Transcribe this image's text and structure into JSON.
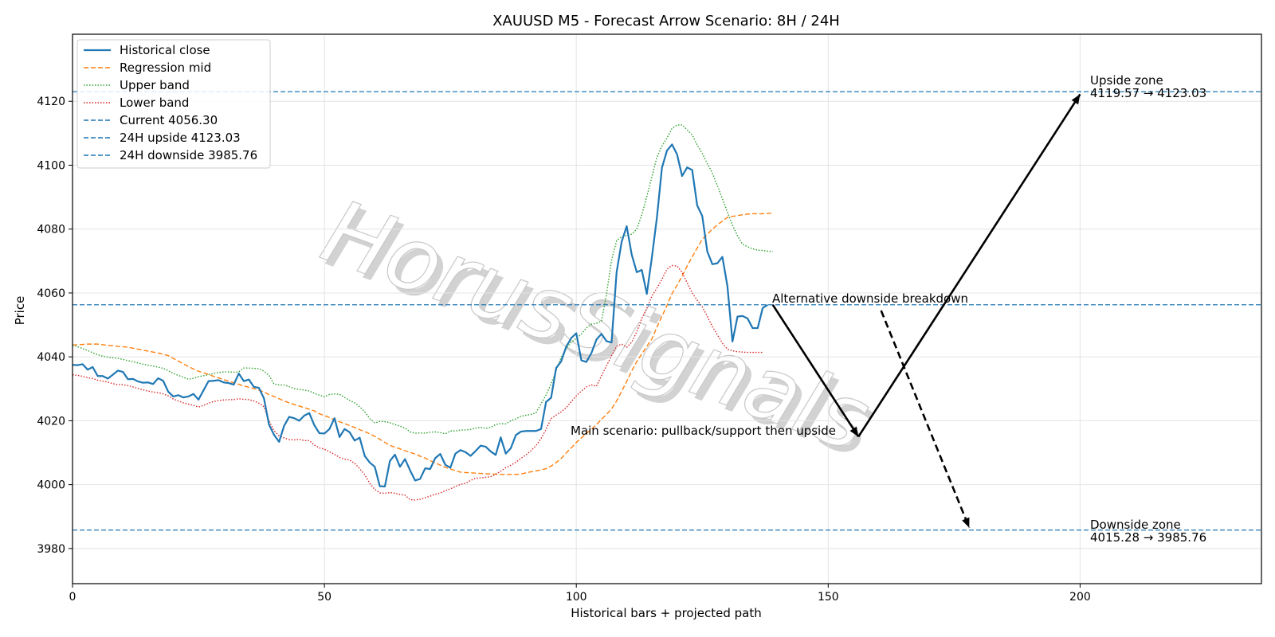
{
  "chart_data": {
    "type": "line",
    "title": "XAUUSD M5 - Forecast Arrow Scenario: 8H / 24H",
    "xlabel": "Historical bars + projected path",
    "ylabel": "Price",
    "xlim": [
      0,
      236
    ],
    "ylim": [
      3969,
      4141
    ],
    "x_ticks": [
      0,
      50,
      100,
      150,
      200
    ],
    "y_ticks": [
      3980,
      4000,
      4020,
      4040,
      4060,
      4080,
      4100,
      4120
    ],
    "grid": true,
    "legend_position": "top-left",
    "watermark": "HorusSignals",
    "colors": {
      "historical": "#1f77b4",
      "regression": "#ff7f0e",
      "upper": "#2ca02c",
      "lower": "#d62728",
      "hline": "#1f77b4",
      "arrow": "#000000"
    },
    "series": [
      {
        "name": "Historical close",
        "key": "historical",
        "style": "solid",
        "x_start": 0,
        "values": [
          4037.5,
          4037.4,
          4037.7,
          4036.0,
          4036.8,
          4034.0,
          4034.0,
          4033.2,
          4034.4,
          4035.7,
          4035.3,
          4033.0,
          4033.1,
          4032.3,
          4031.9,
          4032.0,
          4031.5,
          4033.3,
          4032.5,
          4029.1,
          4027.6,
          4028.0,
          4027.3,
          4027.6,
          4028.4,
          4026.6,
          4029.5,
          4032.4,
          4032.5,
          4032.7,
          4032.0,
          4031.8,
          4031.3,
          4034.8,
          4032.4,
          4032.9,
          4030.6,
          4030.3,
          4027.0,
          4018.8,
          4015.6,
          4013.4,
          4018.4,
          4021.2,
          4020.8,
          4020.0,
          4021.6,
          4022.4,
          4018.6,
          4016.1,
          4016.0,
          4017.4,
          4020.8,
          4014.9,
          4017.4,
          4016.4,
          4013.8,
          4014.7,
          4009.0,
          4006.9,
          4005.6,
          3999.5,
          3999.4,
          4007.4,
          4009.4,
          4005.6,
          4008.0,
          4004.5,
          4001.3,
          4001.8,
          4005.1,
          4004.9,
          4008.3,
          4009.6,
          4006.2,
          4005.3,
          4009.7,
          4010.8,
          4010.2,
          4009.0,
          4010.5,
          4012.2,
          4011.9,
          4010.4,
          4009.3,
          4014.8,
          4009.7,
          4011.4,
          4015.5,
          4016.6,
          4016.8,
          4016.8,
          4016.8,
          4017.4,
          4025.9,
          4027.2,
          4036.5,
          4038.6,
          4043.2,
          4045.9,
          4047.4,
          4038.9,
          4038.4,
          4041.2,
          4045.4,
          4047.2,
          4044.9,
          4044.5,
          4066.5,
          4076.0,
          4080.9,
          4072.0,
          4066.5,
          4067.2,
          4059.7,
          4071.1,
          4083.6,
          4099.2,
          4104.6,
          4106.5,
          4103.4,
          4096.6,
          4099.3,
          4098.5,
          4087.4,
          4084.1,
          4073.0,
          4069.0,
          4069.3,
          4071.3,
          4062.1,
          4044.8,
          4052.6,
          4052.8,
          4052.0,
          4049.0,
          4049.0,
          4055.3,
          4056.3
        ]
      },
      {
        "name": "Regression mid",
        "key": "regression",
        "style": "dashed",
        "x_start": 0,
        "values": [
          4043.7,
          4043.8,
          4043.9,
          4044.0,
          4044.0,
          4044.0,
          4043.8,
          4043.6,
          4043.5,
          4043.3,
          4043.2,
          4043.0,
          4042.7,
          4042.4,
          4042.1,
          4041.8,
          4041.5,
          4041.2,
          4040.8,
          4040.4,
          4039.5,
          4038.7,
          4037.8,
          4037.0,
          4036.2,
          4035.5,
          4035.0,
          4034.5,
          4033.9,
          4033.4,
          4032.9,
          4032.4,
          4031.9,
          4031.4,
          4030.9,
          4030.5,
          4030.1,
          4029.6,
          4029.0,
          4028.2,
          4027.6,
          4026.9,
          4026.2,
          4025.6,
          4025.1,
          4024.6,
          4024.1,
          4023.6,
          4023.1,
          4022.2,
          4021.6,
          4021.0,
          4020.3,
          4019.7,
          4019.1,
          4018.5,
          4017.9,
          4017.2,
          4016.6,
          4015.9,
          4015.1,
          4014.2,
          4013.2,
          4012.3,
          4011.7,
          4011.2,
          4010.6,
          4010.1,
          4009.6,
          4008.9,
          4008.3,
          4007.5,
          4006.8,
          4006.1,
          4005.4,
          4004.9,
          4004.4,
          4003.9,
          4003.8,
          4003.7,
          4003.6,
          4003.5,
          4003.4,
          4003.3,
          4003.3,
          4003.2,
          4003.2,
          4003.2,
          4003.2,
          4003.3,
          4003.7,
          4004.0,
          4004.3,
          4004.6,
          4005.0,
          4005.8,
          4006.9,
          4008.2,
          4009.9,
          4011.5,
          4013.2,
          4014.6,
          4016.0,
          4017.3,
          4018.8,
          4020.4,
          4022.0,
          4023.7,
          4026.2,
          4029.2,
          4032.3,
          4035.6,
          4038.5,
          4040.9,
          4043.3,
          4045.6,
          4049.3,
          4052.7,
          4056.1,
          4059.8,
          4062.4,
          4065.3,
          4068.4,
          4071.3,
          4074.1,
          4076.8,
          4078.4,
          4080.0,
          4081.3,
          4082.5,
          4083.7,
          4084.0,
          4084.2,
          4084.5,
          4084.7,
          4084.8,
          4084.8,
          4084.8,
          4084.9,
          4085.0
        ]
      },
      {
        "name": "Upper band",
        "key": "upper",
        "style": "dotted",
        "x_start": 0,
        "values": [
          4043.7,
          4043.2,
          4042.6,
          4042.0,
          4041.3,
          4040.7,
          4040.2,
          4039.9,
          4039.7,
          4039.5,
          4039.2,
          4038.8,
          4038.5,
          4038.1,
          4037.7,
          4037.4,
          4037.1,
          4036.8,
          4036.4,
          4035.7,
          4034.8,
          4034.2,
          4033.6,
          4033.0,
          4033.3,
          4033.8,
          4034.1,
          4034.4,
          4034.8,
          4035.1,
          4035.3,
          4035.3,
          4035.2,
          4035.3,
          4036.5,
          4036.5,
          4036.4,
          4036.3,
          4035.5,
          4034.2,
          4031.5,
          4031.2,
          4031.2,
          4030.7,
          4030.1,
          4029.8,
          4029.6,
          4029.3,
          4028.6,
          4028.0,
          4027.5,
          4028.2,
          4028.4,
          4028.3,
          4027.3,
          4026.4,
          4025.6,
          4024.4,
          4022.8,
          4020.7,
          4019.3,
          4019.8,
          4019.7,
          4019.4,
          4018.8,
          4018.3,
          4017.7,
          4016.5,
          4016.1,
          4016.2,
          4016.1,
          4016.4,
          4016.5,
          4016.3,
          4015.9,
          4016.8,
          4016.8,
          4017.1,
          4017.1,
          4017.3,
          4017.6,
          4018.0,
          4017.6,
          4017.9,
          4018.8,
          4019.1,
          4019.0,
          4020.0,
          4020.6,
          4021.4,
          4021.7,
          4022.0,
          4022.5,
          4025.3,
          4028.1,
          4031.5,
          4035.7,
          4039.9,
          4042.6,
          4044.6,
          4045.8,
          4047.1,
          4049.1,
          4050.2,
          4050.5,
          4051.2,
          4059.7,
          4070.3,
          4076.4,
          4077.6,
          4078.0,
          4078.4,
          4080.0,
          4084.5,
          4090.2,
          4096.3,
          4102.5,
          4106.0,
          4108.5,
          4111.5,
          4112.6,
          4112.6,
          4111.1,
          4109.5,
          4106.3,
          4103.7,
          4100.5,
          4097.6,
          4093.6,
          4089.5,
          4085.3,
          4081.2,
          4077.9,
          4075.2,
          4074.5,
          4073.8,
          4073.4,
          4073.3,
          4073.1,
          4073.0
        ]
      },
      {
        "name": "Lower band",
        "key": "lower",
        "style": "dotted",
        "x_start": 0,
        "values": [
          4034.4,
          4034.2,
          4033.9,
          4033.5,
          4033.2,
          4032.7,
          4032.4,
          4032.1,
          4031.6,
          4031.3,
          4031.3,
          4031.0,
          4030.6,
          4030.1,
          4029.7,
          4029.3,
          4029.0,
          4028.8,
          4028.4,
          4027.8,
          4026.8,
          4026.2,
          4025.6,
          4025.2,
          4024.8,
          4024.3,
          4024.8,
          4025.5,
          4026.0,
          4026.3,
          4026.5,
          4026.6,
          4026.6,
          4026.9,
          4026.7,
          4026.6,
          4026.2,
          4025.5,
          4024.4,
          4020.0,
          4016.9,
          4015.3,
          4014.6,
          4014.1,
          4014.0,
          4014.2,
          4013.8,
          4013.8,
          4012.4,
          4011.5,
          4011.1,
          4010.3,
          4009.5,
          4008.5,
          4008.0,
          4007.7,
          4006.7,
          4005.0,
          4003.1,
          4000.4,
          3998.5,
          3997.4,
          3997.3,
          3997.5,
          3997.3,
          3996.9,
          3996.7,
          3995.3,
          3995.2,
          3995.4,
          3995.9,
          3996.4,
          3997.0,
          3997.4,
          3998.1,
          3998.7,
          3999.4,
          4000.1,
          4000.4,
          4001.3,
          4002.0,
          4002.1,
          4002.3,
          4002.5,
          4003.2,
          4004.2,
          4005.3,
          4006.1,
          4007.0,
          4008.2,
          4009.3,
          4010.6,
          4012.2,
          4014.4,
          4017.3,
          4020.7,
          4021.8,
          4022.8,
          4024.1,
          4026.0,
          4027.8,
          4029.3,
          4030.6,
          4031.2,
          4030.8,
          4034.1,
          4037.2,
          4040.4,
          4043.3,
          4044.0,
          4043.0,
          4044.6,
          4047.8,
          4052.0,
          4055.2,
          4059.0,
          4061.5,
          4064.3,
          4067.5,
          4068.6,
          4068.4,
          4066.5,
          4063.2,
          4060.0,
          4057.7,
          4055.7,
          4052.7,
          4049.5,
          4046.9,
          4044.3,
          4042.4,
          4041.9,
          4041.6,
          4041.5,
          4041.4,
          4041.4,
          4041.4,
          4041.4
        ]
      }
    ],
    "hlines": [
      {
        "name": "Current 4056.30",
        "value": 4056.3
      },
      {
        "name": "24H upside 4123.03",
        "value": 4123.03
      },
      {
        "name": "24H downside 3985.76",
        "value": 3985.76
      }
    ],
    "arrows": [
      {
        "kind": "main",
        "from": [
          139,
          4056.3
        ],
        "to": [
          156,
          4015.0
        ],
        "dashed": false
      },
      {
        "kind": "main",
        "from": [
          156,
          4015.0
        ],
        "to": [
          200,
          4122.2
        ],
        "dashed": false
      },
      {
        "kind": "alternative",
        "from": [
          160.5,
          4054.5
        ],
        "to": [
          178,
          3986.5
        ],
        "dashed": true
      }
    ],
    "annotations": {
      "alternative": "Alternative downside breakdown",
      "main": "Main scenario: pullback/support then upside",
      "upside_title": "Upside zone",
      "upside_range": "4119.57 → 4123.03",
      "downside_title": "Downside zone",
      "downside_range": "4015.28 → 3985.76"
    }
  }
}
